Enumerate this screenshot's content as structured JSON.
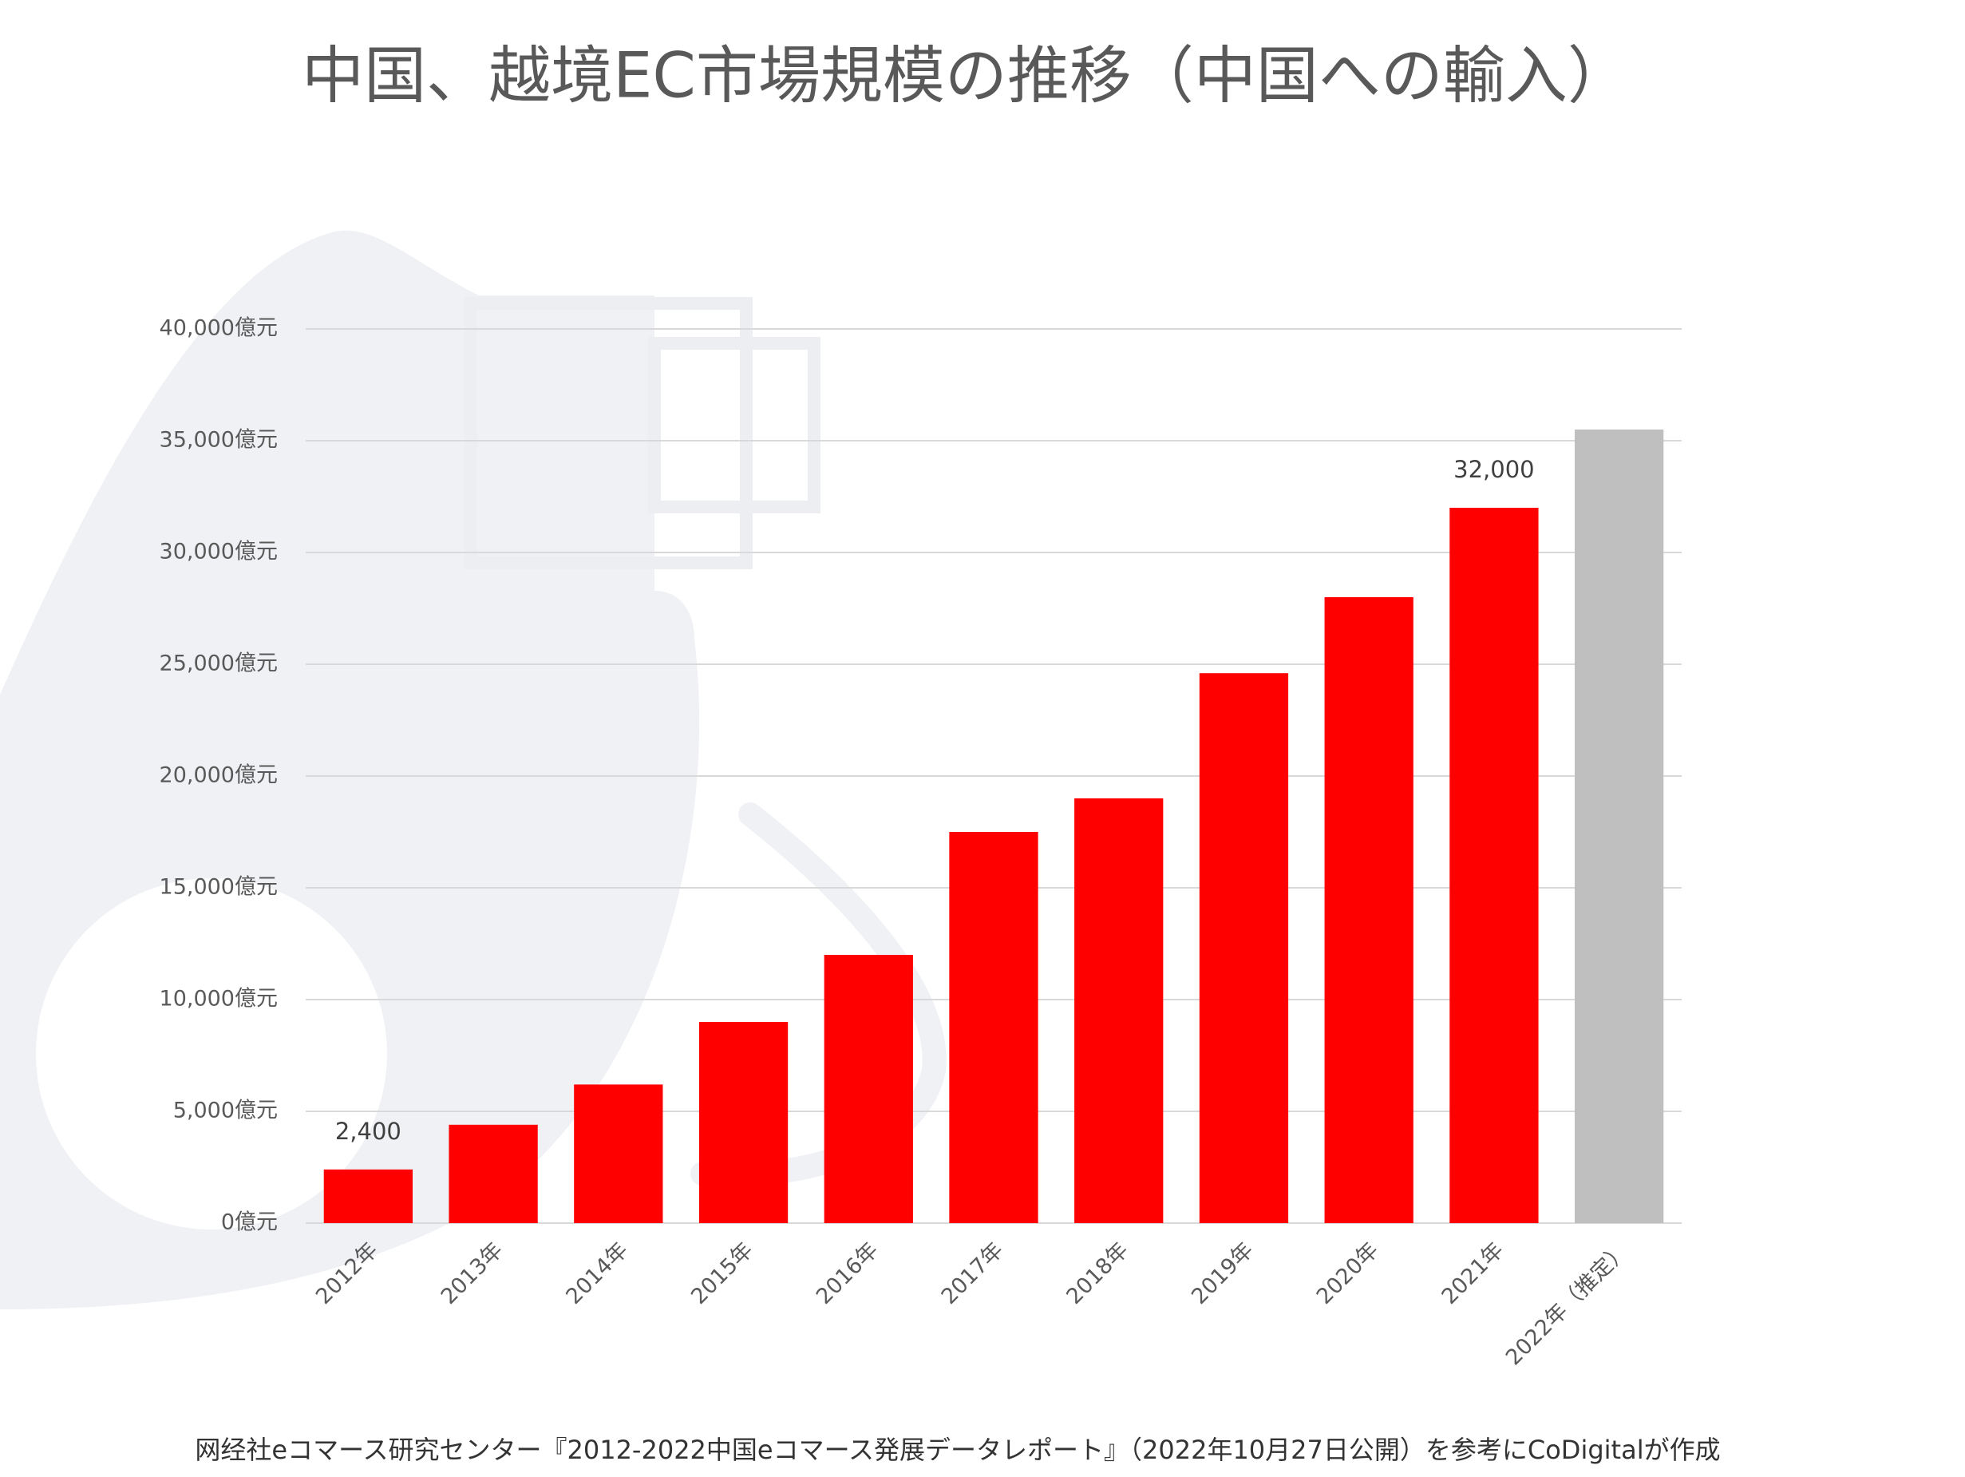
{
  "chart_data": {
    "type": "bar",
    "title": "中国、越境EC市場規模の推移（中国への輸入）",
    "source": "网经社eコマース研究センター『2012-2022中国eコマース発展データレポート』（2022年10月27日公開）を参考にCoDigitalが作成",
    "categories": [
      "2012年",
      "2013年",
      "2014年",
      "2015年",
      "2016年",
      "2017年",
      "2018年",
      "2019年",
      "2020年",
      "2021年",
      "2022年（推定）"
    ],
    "values": [
      2400,
      4400,
      6200,
      9000,
      12000,
      17500,
      19000,
      24600,
      28000,
      32000,
      35500
    ],
    "value_labels": [
      "2,400",
      null,
      null,
      null,
      null,
      null,
      null,
      null,
      null,
      "32,000",
      null
    ],
    "colors": [
      "#ff0000",
      "#ff0000",
      "#ff0000",
      "#ff0000",
      "#ff0000",
      "#ff0000",
      "#ff0000",
      "#ff0000",
      "#ff0000",
      "#ff0000",
      "#bfbfbf"
    ],
    "ylim": [
      0,
      40000
    ],
    "yticks": [
      {
        "value": 0,
        "label": "0億元"
      },
      {
        "value": 5000,
        "label": "5,000億元"
      },
      {
        "value": 10000,
        "label": "10,000億元"
      },
      {
        "value": 15000,
        "label": "15,000億元"
      },
      {
        "value": 20000,
        "label": "20,000億元"
      },
      {
        "value": 25000,
        "label": "25,000億元"
      },
      {
        "value": 30000,
        "label": "30,000億元"
      },
      {
        "value": 35000,
        "label": "35,000億元"
      },
      {
        "value": 40000,
        "label": "40,000億元"
      }
    ],
    "grid": true
  }
}
